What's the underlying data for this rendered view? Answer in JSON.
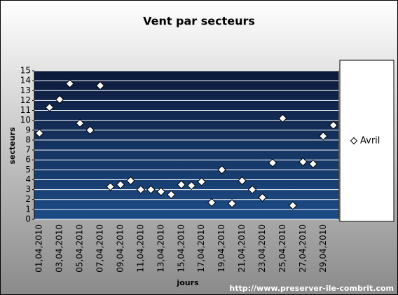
{
  "chart_data": {
    "type": "scatter",
    "title": "Vent par secteurs",
    "x_label": "jours",
    "y_label": "secteurs",
    "footer": "http://www.preserver-ile-combrit.com",
    "categories": [
      "01,04,2010",
      null,
      "03,04,2010",
      null,
      "05,04,2010",
      null,
      "07,04,2010",
      null,
      "09,04,2010",
      null,
      "11,04,2010",
      null,
      "13,04,2010",
      null,
      "15,04,2010",
      null,
      "17,04,2010",
      null,
      "19,04,2010",
      null,
      "21,04,2010",
      null,
      "23,04,2010",
      null,
      "25,04,2010",
      null,
      "27,04,2010",
      null,
      "29,04,2010",
      null
    ],
    "series": [
      {
        "name": "Avril",
        "color": "#ffffff",
        "values": [
          8.7,
          11.3,
          12.1,
          13.7,
          9.7,
          9.0,
          13.5,
          3.3,
          3.5,
          3.9,
          3.0,
          3.0,
          2.8,
          2.5,
          3.5,
          3.4,
          3.8,
          1.7,
          5.0,
          1.6,
          3.9,
          3.0,
          2.2,
          5.7,
          10.2,
          1.4,
          5.8,
          5.6,
          8.4,
          9.5
        ]
      }
    ],
    "ylim": [
      0,
      15
    ],
    "yticks": [
      0,
      1,
      2,
      3,
      4,
      5,
      6,
      7,
      8,
      9,
      10,
      11,
      12,
      13,
      14,
      15
    ],
    "grid": true,
    "legend": "right"
  }
}
